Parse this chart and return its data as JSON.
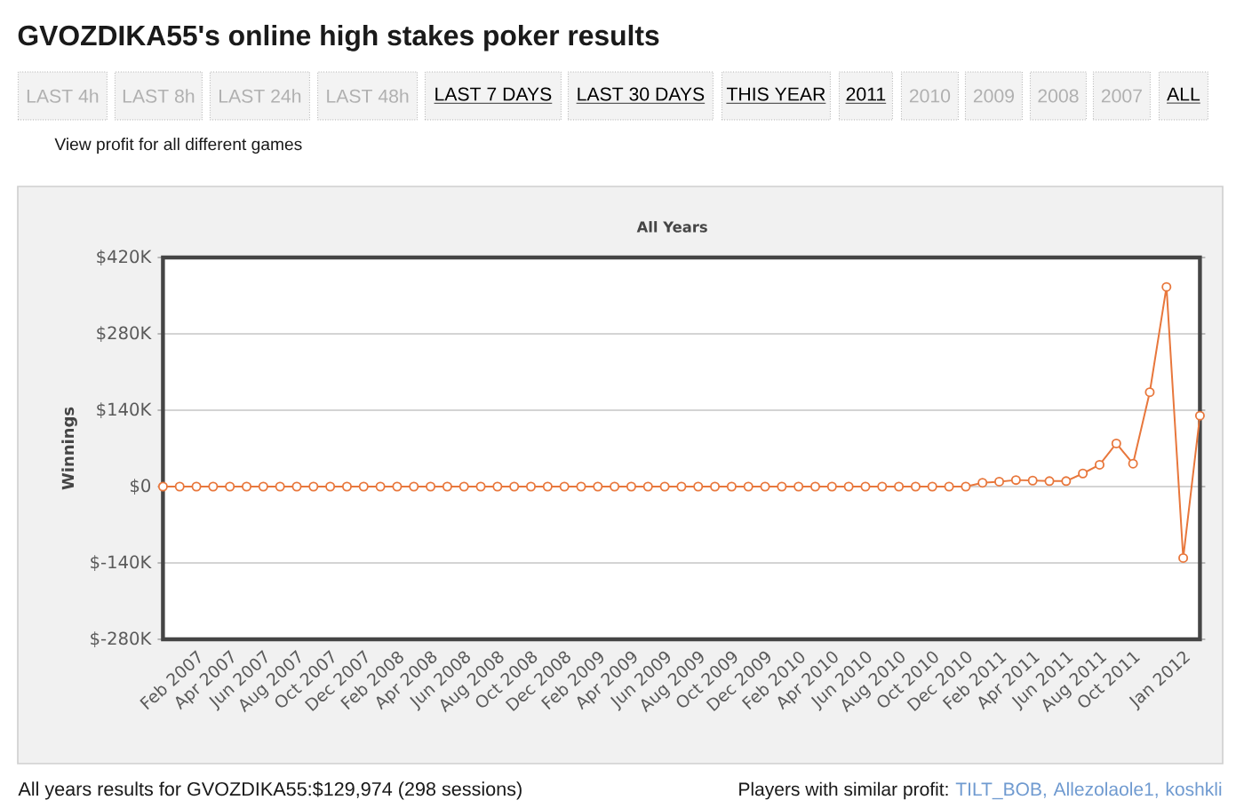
{
  "chart_data": {
    "type": "line",
    "title": "GVOZDIKA55's online high stakes poker results",
    "subtitle": "All Years",
    "ylabel": "Winnings",
    "categories": [
      null,
      null,
      "Feb 2007",
      null,
      "Apr 2007",
      null,
      "Jun 2007",
      null,
      "Aug 2007",
      null,
      "Oct 2007",
      null,
      "Dec 2007",
      null,
      "Feb 2008",
      null,
      "Apr 2008",
      null,
      "Jun 2008",
      null,
      "Aug 2008",
      null,
      "Oct 2008",
      null,
      "Dec 2008",
      null,
      "Feb 2009",
      null,
      "Apr 2009",
      null,
      "Jun 2009",
      null,
      "Aug 2009",
      null,
      "Oct 2009",
      null,
      "Dec 2009",
      null,
      "Feb 2010",
      null,
      "Apr 2010",
      null,
      "Jun 2010",
      null,
      "Aug 2010",
      null,
      "Oct 2010",
      null,
      "Dec 2010",
      null,
      "Feb 2011",
      null,
      "Apr 2011",
      null,
      "Jun 2011",
      null,
      "Aug 2011",
      null,
      "Oct 2011",
      null,
      null,
      "Jan 2012",
      null
    ],
    "values": [
      0,
      0,
      0,
      0,
      0,
      0,
      0,
      0,
      0,
      0,
      0,
      0,
      0,
      0,
      0,
      0,
      0,
      0,
      0,
      0,
      0,
      0,
      0,
      0,
      0,
      0,
      0,
      0,
      0,
      0,
      0,
      0,
      0,
      0,
      0,
      0,
      0,
      0,
      0,
      0,
      0,
      0,
      0,
      0,
      0,
      0,
      0,
      0,
      0,
      7,
      9,
      12,
      11,
      10,
      10,
      24,
      40,
      79,
      42,
      173,
      366,
      -131,
      130
    ],
    "color": "#e8773c",
    "marker": "circle",
    "grid": "y",
    "ylim": [
      -280,
      420
    ],
    "yticks": [
      {
        "value": -280,
        "label": "$-280K"
      },
      {
        "value": -140,
        "label": "$-140K"
      },
      {
        "value": 0,
        "label": "$0"
      },
      {
        "value": 140,
        "label": "$140K"
      },
      {
        "value": 280,
        "label": "$280K"
      },
      {
        "value": 420,
        "label": "$420K"
      }
    ],
    "annotations": [
      "LAST 4h",
      "LAST 8h",
      "LAST 24h",
      "LAST 48h",
      "LAST 7 DAYS",
      "LAST 30 DAYS",
      "THIS YEAR",
      "2011",
      "2010",
      "2009",
      "2008",
      "2007",
      "ALL",
      "View profit for all different games",
      "All years results for GVOZDIKA55:$129,974 (298 sessions)",
      "Players with similar profit:",
      "TILT_BOB,",
      "Allezolaole1,",
      "koshkli"
    ]
  }
}
